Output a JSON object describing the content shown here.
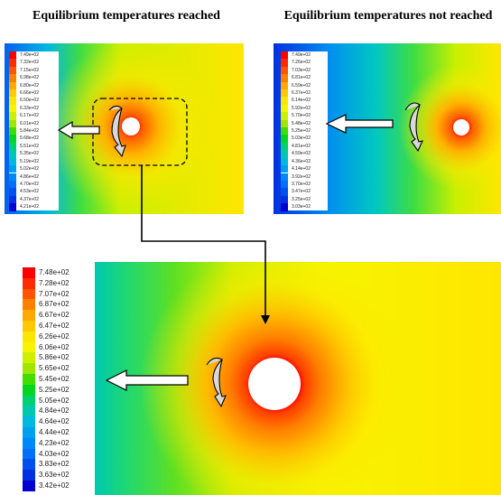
{
  "titles": {
    "reached": "Equilibrium temperatures reached",
    "not_reached": "Equilibrium temperatures not reached"
  },
  "legend_reached": [
    "7.49e+02",
    "7.32e+02",
    "7.15e+02",
    "6.98e+02",
    "6.80e+02",
    "6.66e+02",
    "6.50e+02",
    "6.33e+02",
    "6.17e+02",
    "6.01e+02",
    "5.84e+02",
    "5.68e+02",
    "5.51e+02",
    "5.35e+02",
    "5.19e+02",
    "5.02e+02",
    "4.86e+02",
    "4.70e+02",
    "4.53e+02",
    "4.37e+02",
    "4.21e+02"
  ],
  "legend_not_reached": [
    "7.49e+02",
    "7.26e+02",
    "7.03e+02",
    "6.81e+02",
    "6.59e+02",
    "6.37e+02",
    "6.14e+02",
    "5.92e+02",
    "5.70e+02",
    "5.48e+02",
    "5.25e+02",
    "5.03e+02",
    "4.81e+02",
    "4.59e+02",
    "4.36e+02",
    "4.14e+02",
    "3.92e+02",
    "3.70e+02",
    "3.47e+02",
    "3.25e+02",
    "3.03e+02"
  ],
  "legend_main": [
    "7.48e+02",
    "7.28e+02",
    "7.07e+02",
    "6.87e+02",
    "6.67e+02",
    "6.47e+02",
    "6.26e+02",
    "6.06e+02",
    "5.86e+02",
    "5.65e+02",
    "5.45e+02",
    "5.25e+02",
    "5.05e+02",
    "4.84e+02",
    "4.64e+02",
    "4.44e+02",
    "4.23e+02",
    "4.03e+02",
    "3.83e+02",
    "3.63e+02",
    "3.42e+02"
  ],
  "colors": {
    "scale": [
      "#ff0000",
      "#ff2a00",
      "#ff5400",
      "#ff7f00",
      "#ffa800",
      "#ffc800",
      "#ffe600",
      "#f5f500",
      "#ccf000",
      "#a0e600",
      "#44dd00",
      "#00d820",
      "#00d070",
      "#00c8b0",
      "#00b8e0",
      "#00a0f0",
      "#0088f8",
      "#0070f8",
      "#0050f0",
      "#0030e0",
      "#0000d0"
    ]
  }
}
